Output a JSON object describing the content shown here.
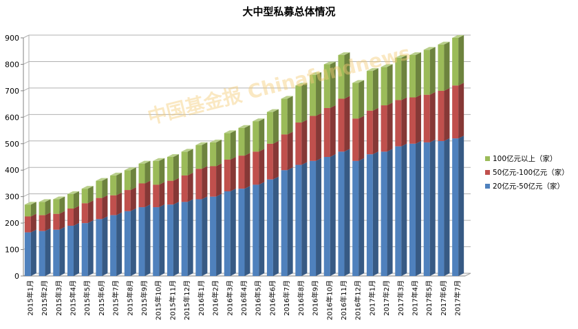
{
  "chart_data": {
    "type": "bar",
    "stacked": true,
    "title": "大中型私募总体情况",
    "watermark": "中国基金报 Chinafundnews",
    "ylim": [
      0,
      900
    ],
    "yticks": [
      0,
      100,
      200,
      300,
      400,
      500,
      600,
      700,
      800,
      900
    ],
    "grid": true,
    "legend_position": "right",
    "categories": [
      "2015年1月",
      "2015年2月",
      "2015年3月",
      "2015年4月",
      "2015年5月",
      "2015年6月",
      "2015年7月",
      "2015年8月",
      "2015年9月",
      "2015年10月",
      "2015年11月",
      "2015年12月",
      "2016年1月",
      "2016年2月",
      "2016年3月",
      "2016年4月",
      "2016年5月",
      "2016年6月",
      "2016年7月",
      "2016年8月",
      "2016年9月",
      "2016年10月",
      "2016年11月",
      "2016年12月",
      "2017年1月",
      "2017年2月",
      "2017年3月",
      "2017年4月",
      "2017年5月",
      "2017年6月",
      "2017年7月"
    ],
    "series": [
      {
        "name": "20亿元-50亿元（家）",
        "color": "#4f81bd",
        "values": [
          165,
          170,
          175,
          190,
          200,
          215,
          230,
          245,
          260,
          260,
          270,
          280,
          290,
          300,
          320,
          330,
          345,
          365,
          400,
          420,
          435,
          450,
          470,
          435,
          460,
          470,
          490,
          500,
          505,
          510,
          520
        ]
      },
      {
        "name": "50亿元-100亿元（家）",
        "color": "#c0504d",
        "values": [
          60,
          60,
          60,
          65,
          75,
          80,
          75,
          80,
          90,
          85,
          90,
          100,
          115,
          115,
          120,
          125,
          125,
          135,
          135,
          160,
          170,
          185,
          200,
          160,
          165,
          175,
          175,
          175,
          180,
          190,
          200
        ]
      },
      {
        "name": "100亿元以上（家）",
        "color": "#9bbb59",
        "values": [
          45,
          50,
          55,
          55,
          55,
          65,
          75,
          75,
          75,
          90,
          90,
          90,
          90,
          90,
          100,
          105,
          115,
          120,
          135,
          140,
          155,
          165,
          165,
          135,
          150,
          145,
          160,
          160,
          170,
          175,
          180
        ]
      }
    ]
  }
}
